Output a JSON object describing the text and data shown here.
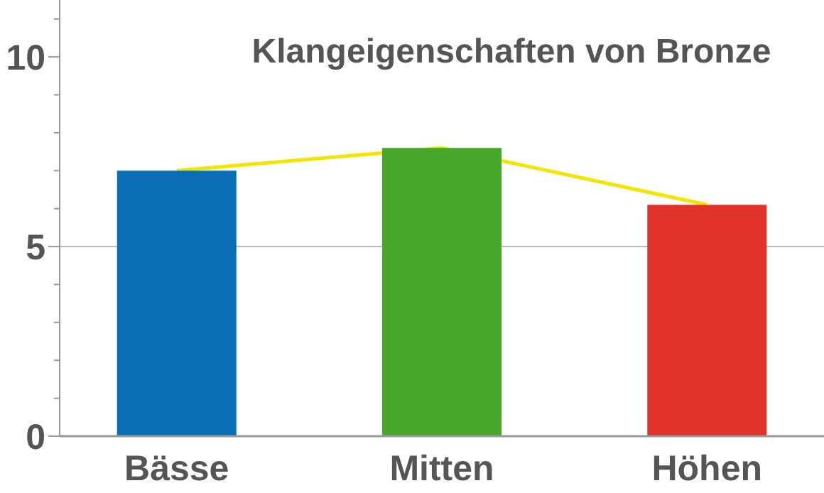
{
  "chart_data": {
    "type": "bar",
    "title": "Klangeigenschaften von Bronze",
    "categories": [
      "Bässe",
      "Mitten",
      "Höhen"
    ],
    "series": [
      {
        "colors": [
          "#0a6eb4",
          "#46a72b",
          "#e2332b"
        ],
        "values": [
          7.0,
          7.6,
          6.1
        ]
      },
      {
        "type": "line",
        "color": "#f2e600",
        "values": [
          7.0,
          7.6,
          6.1
        ]
      }
    ],
    "ylim": [
      0,
      11.5
    ],
    "yticks": [
      0,
      {
        "value": 1,
        "label": null
      },
      {
        "value": 2,
        "label": null
      },
      {
        "value": 3,
        "label": null
      },
      {
        "value": 4,
        "label": null
      },
      5,
      {
        "value": 6,
        "label": null
      },
      {
        "value": 7,
        "label": null
      },
      {
        "value": 8,
        "label": null
      },
      {
        "value": 9,
        "label": null
      },
      10,
      {
        "value": 11,
        "label": null
      }
    ],
    "ref_lines": [
      {
        "axis": "y",
        "value": 5,
        "color": "#bbbbbb"
      }
    ],
    "grid": false
  }
}
